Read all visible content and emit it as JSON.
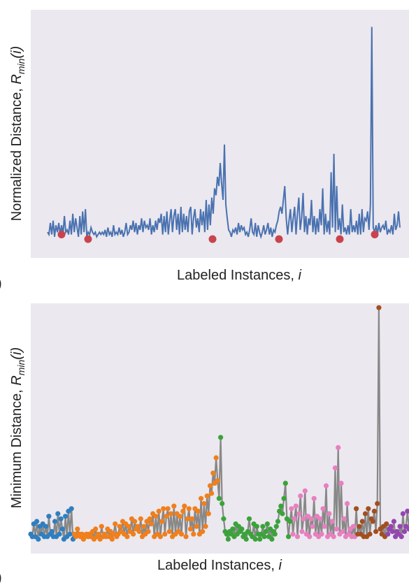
{
  "figure": {
    "panels": [
      {
        "xlabel": "Labeled Instances, ",
        "xlabel_var": "i",
        "ylabel": "Normalized Distance, ",
        "ylabel_sym": "R",
        "ylabel_sub": "min",
        "ylabel_arg": "(i)",
        "panel_letter": ")"
      },
      {
        "xlabel": "Labeled Instances, ",
        "xlabel_var": "i",
        "ylabel": "Minimum Distance, ",
        "ylabel_sym": "R",
        "ylabel_sub": "min",
        "ylabel_arg": "(i)",
        "panel_letter": ")"
      }
    ]
  },
  "colors": {
    "plot_bg": "#ebe8ef",
    "line_blue": "#4a72b0",
    "marker_red": "#c9434e",
    "line_gray": "#888888",
    "cluster_colors": [
      "#2f7fc0",
      "#f07f1c",
      "#3aa33a",
      "#e87fbf",
      "#a24f1f",
      "#9446b0"
    ]
  },
  "chart_data": [
    {
      "type": "line",
      "title": "",
      "xlabel": "Labeled Instances, i",
      "ylabel": "Normalized Distance, R_min(i)",
      "xlim": [
        0,
        310
      ],
      "ylim": [
        0,
        1.0
      ],
      "grid": false,
      "series": [
        {
          "values": [
            0.06,
            0.05,
            0.1,
            0.05,
            0.11,
            0.04,
            0.09,
            0.06,
            0.1,
            0.05,
            0.09,
            0.05,
            0.13,
            0.06,
            0.07,
            0.05,
            0.11,
            0.05,
            0.14,
            0.06,
            0.12,
            0.08,
            0.04,
            0.13,
            0.05,
            0.15,
            0.06,
            0.16,
            0.04,
            0.06,
            0.05,
            0.08,
            0.06,
            0.05,
            0.06,
            0.04,
            0.05,
            0.06,
            0.05,
            0.06,
            0.05,
            0.07,
            0.04,
            0.08,
            0.05,
            0.06,
            0.04,
            0.09,
            0.05,
            0.06,
            0.05,
            0.08,
            0.05,
            0.07,
            0.04,
            0.06,
            0.1,
            0.05,
            0.06,
            0.09,
            0.07,
            0.11,
            0.06,
            0.1,
            0.05,
            0.09,
            0.07,
            0.12,
            0.06,
            0.11,
            0.08,
            0.09,
            0.07,
            0.12,
            0.05,
            0.09,
            0.06,
            0.11,
            0.07,
            0.12,
            0.1,
            0.14,
            0.05,
            0.13,
            0.06,
            0.15,
            0.05,
            0.11,
            0.16,
            0.06,
            0.13,
            0.16,
            0.07,
            0.14,
            0.05,
            0.17,
            0.06,
            0.14,
            0.07,
            0.13,
            0.06,
            0.15,
            0.17,
            0.05,
            0.12,
            0.16,
            0.08,
            0.12,
            0.06,
            0.16,
            0.09,
            0.15,
            0.06,
            0.2,
            0.07,
            0.18,
            0.09,
            0.21,
            0.14,
            0.25,
            0.22,
            0.3,
            0.26,
            0.36,
            0.27,
            0.2,
            0.44,
            0.18,
            0.12,
            0.07,
            0.06,
            0.04,
            0.07,
            0.06,
            0.08,
            0.05,
            0.1,
            0.06,
            0.09,
            0.07,
            0.08,
            0.05,
            0.06,
            0.04,
            0.07,
            0.12,
            0.06,
            0.05,
            0.1,
            0.04,
            0.09,
            0.06,
            0.04,
            0.06,
            0.09,
            0.05,
            0.07,
            0.1,
            0.05,
            0.08,
            0.04,
            0.07,
            0.06,
            0.09,
            0.11,
            0.15,
            0.17,
            0.14,
            0.2,
            0.26,
            0.12,
            0.05,
            0.11,
            0.16,
            0.06,
            0.12,
            0.17,
            0.05,
            0.14,
            0.21,
            0.07,
            0.12,
            0.23,
            0.06,
            0.13,
            0.05,
            0.12,
            0.09,
            0.2,
            0.06,
            0.13,
            0.05,
            0.12,
            0.06,
            0.16,
            0.09,
            0.25,
            0.05,
            0.14,
            0.06,
            0.11,
            0.05,
            0.32,
            0.08,
            0.4,
            0.06,
            0.26,
            0.07,
            0.12,
            0.05,
            0.18,
            0.06,
            0.08,
            0.05,
            0.09,
            0.05,
            0.16,
            0.06,
            0.09,
            0.06,
            0.11,
            0.05,
            0.14,
            0.05,
            0.16,
            0.06,
            0.12,
            0.11,
            0.15,
            0.07,
            0.18,
            0.95,
            0.08,
            0.06,
            0.09,
            0.05,
            0.1,
            0.06,
            0.08,
            0.09,
            0.07,
            0.11,
            0.05,
            0.07,
            0.06,
            0.09,
            0.05,
            0.14,
            0.07,
            0.09,
            0.15,
            0.08
          ]
        }
      ],
      "markers": [
        {
          "x": 7,
          "y": 0.05
        },
        {
          "x": 20,
          "y": 0.03
        },
        {
          "x": 86,
          "y": 0.03
        },
        {
          "x": 120,
          "y": 0.03
        },
        {
          "x": 151,
          "y": 0.03
        },
        {
          "x": 169,
          "y": 0.05
        }
      ]
    },
    {
      "type": "scatter",
      "title": "",
      "xlabel": "Labeled Instances, i",
      "ylabel": "Minimum Distance, R_min(i)",
      "ylim": [
        0,
        1.0
      ],
      "grid": false,
      "clusters": [
        {
          "count": 24,
          "color_index": 0
        },
        {
          "count": 80,
          "color_index": 1
        },
        {
          "count": 40,
          "color_index": 2
        },
        {
          "count": 36,
          "color_index": 3
        },
        {
          "count": 18,
          "color_index": 4
        },
        {
          "count": 12,
          "color_index": 5
        }
      ],
      "note": "same series as panel 1, points colored by cluster"
    }
  ]
}
